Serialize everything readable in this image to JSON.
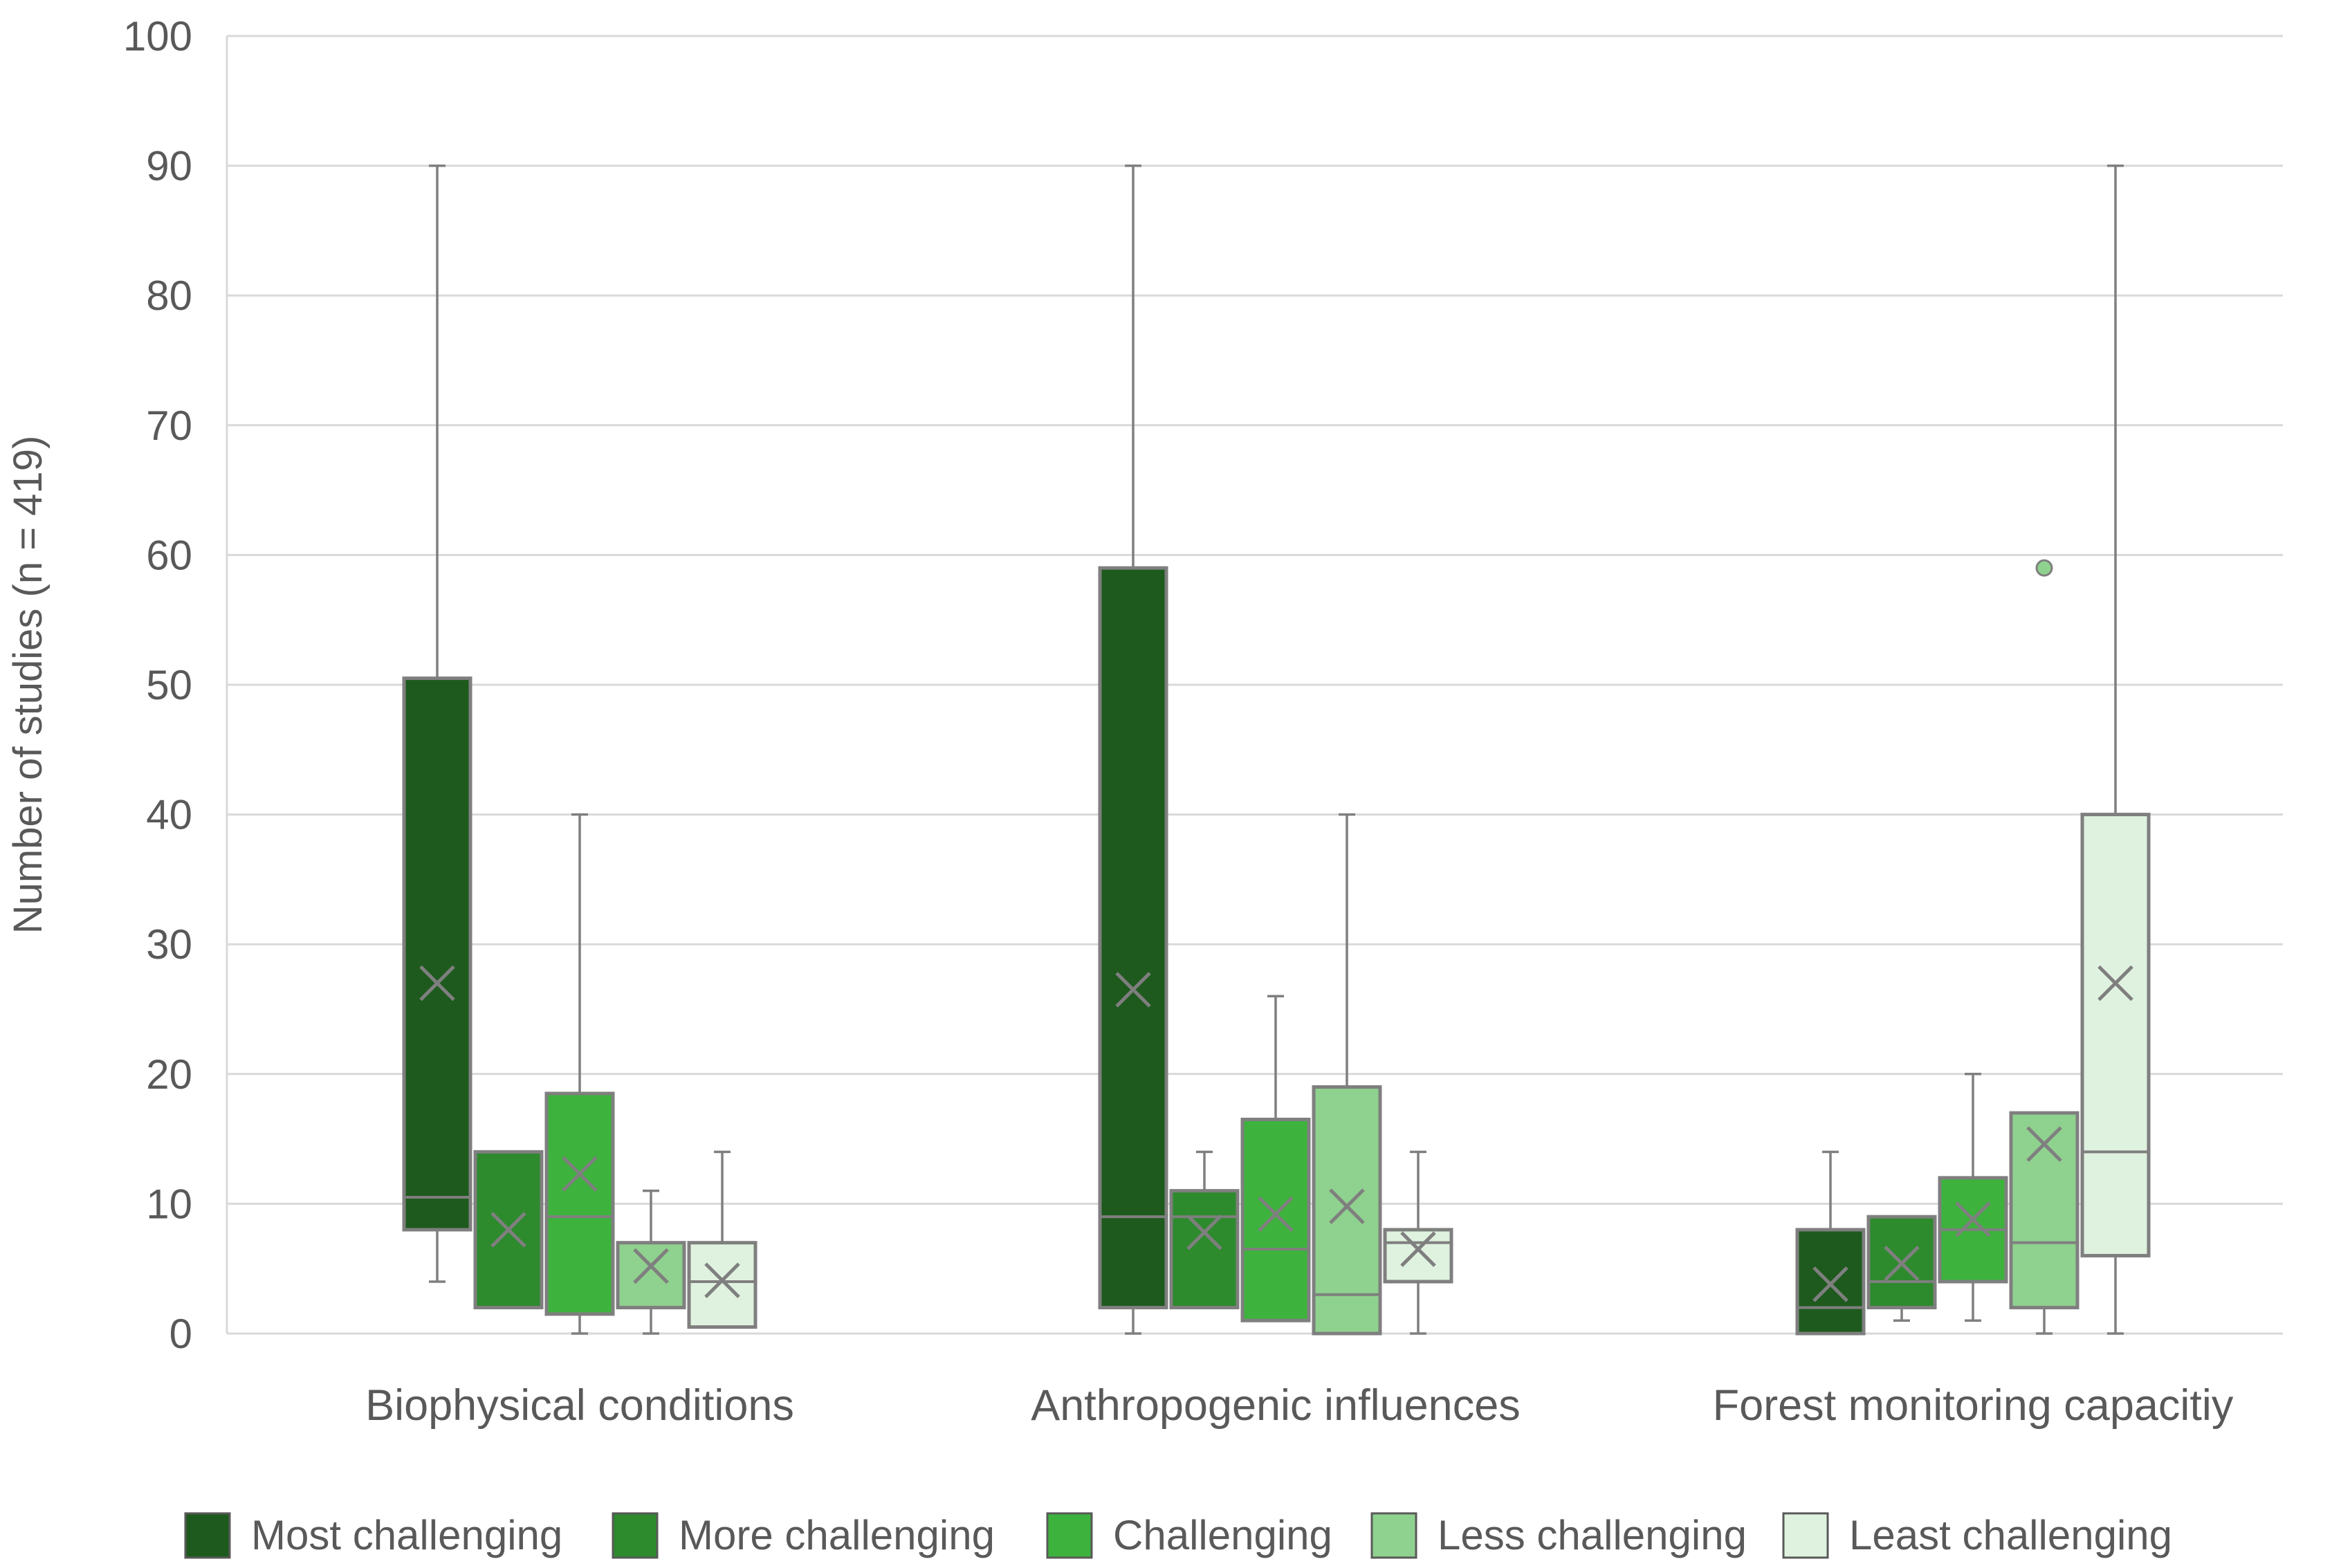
{
  "chart_data": {
    "type": "box",
    "ylabel": "Number of studies (n = 419)",
    "xlabel": "",
    "ylim": [
      0,
      100
    ],
    "yticks": [
      0,
      10,
      20,
      30,
      40,
      50,
      60,
      70,
      80,
      90,
      100
    ],
    "grid": true,
    "legend_position": "bottom",
    "categories": [
      "Biophysical conditions",
      "Anthropogenic influences",
      "Forest monitoring capacitiy"
    ],
    "series": [
      {
        "name": "Most challenging",
        "color": "#1e5a1e",
        "boxes": [
          {
            "min": 4,
            "q1": 8,
            "median": 10.5,
            "q3": 50.5,
            "max": 90,
            "mean": 27
          },
          {
            "min": 0,
            "q1": 2,
            "median": 9,
            "q3": 59,
            "max": 90,
            "mean": 26.5
          },
          {
            "min": 0,
            "q1": 0,
            "median": 2,
            "q3": 8,
            "max": 14,
            "mean": 3.8
          }
        ]
      },
      {
        "name": "More challenging",
        "color": "#2d8a2d",
        "boxes": [
          {
            "min": 2,
            "q1": 2,
            "median": 2,
            "q3": 14,
            "max": 14,
            "mean": 8
          },
          {
            "min": 2,
            "q1": 2,
            "median": 9,
            "q3": 11,
            "max": 14,
            "mean": 7.8
          },
          {
            "min": 1,
            "q1": 2,
            "median": 4,
            "q3": 9,
            "max": 9,
            "mean": 5.4
          }
        ]
      },
      {
        "name": "Challenging",
        "color": "#3db33d",
        "boxes": [
          {
            "min": 0,
            "q1": 1.5,
            "median": 9,
            "q3": 18.5,
            "max": 40,
            "mean": 12.3
          },
          {
            "min": 1,
            "q1": 1,
            "median": 6.5,
            "q3": 16.5,
            "max": 26,
            "mean": 9.2
          },
          {
            "min": 1,
            "q1": 4,
            "median": 8,
            "q3": 12,
            "max": 20,
            "mean": 8.8
          }
        ]
      },
      {
        "name": "Less challenging",
        "color": "#8fd18f",
        "boxes": [
          {
            "min": 0,
            "q1": 2,
            "median": 7,
            "q3": 7,
            "max": 11,
            "mean": 5.2
          },
          {
            "min": 0,
            "q1": 0,
            "median": 3,
            "q3": 19,
            "max": 40,
            "mean": 9.8
          },
          {
            "min": 0,
            "q1": 2,
            "median": 7,
            "q3": 17,
            "max": 17,
            "mean": 14.6,
            "outliers": [
              59
            ]
          }
        ]
      },
      {
        "name": "Least challenging",
        "color": "#dff2df",
        "boxes": [
          {
            "min": 0.5,
            "q1": 0.5,
            "median": 4,
            "q3": 7,
            "max": 14,
            "mean": 4.1
          },
          {
            "min": 0,
            "q1": 4,
            "median": 7,
            "q3": 8,
            "max": 14,
            "mean": 6.5
          },
          {
            "min": 0,
            "q1": 6,
            "median": 14,
            "q3": 40,
            "max": 90,
            "mean": 27
          }
        ]
      }
    ]
  }
}
